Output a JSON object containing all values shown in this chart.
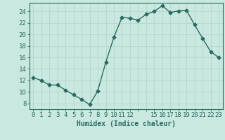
{
  "x": [
    0,
    1,
    2,
    3,
    4,
    5,
    6,
    7,
    8,
    9,
    10,
    11,
    12,
    13,
    14,
    15,
    16,
    17,
    18,
    19,
    20,
    21,
    22,
    23
  ],
  "y": [
    12.5,
    12.0,
    11.2,
    11.2,
    10.3,
    9.5,
    8.7,
    7.8,
    10.2,
    15.2,
    19.5,
    23.0,
    22.8,
    22.5,
    23.5,
    24.0,
    25.0,
    23.8,
    24.1,
    24.2,
    21.7,
    19.3,
    17.0,
    16.0
  ],
  "line_color": "#2a6b5e",
  "bg_color": "#c8e8e0",
  "grid_color": "#b8d8d0",
  "xlabel": "Humidex (Indice chaleur)",
  "ylabel_ticks": [
    8,
    10,
    12,
    14,
    16,
    18,
    20,
    22,
    24
  ],
  "ylim": [
    7.0,
    25.5
  ],
  "xlim": [
    -0.5,
    23.5
  ],
  "xtick_labels": [
    "0",
    "1",
    "2",
    "3",
    "4",
    "5",
    "6",
    "7",
    "8",
    "9",
    "10",
    "11",
    "12",
    "",
    "",
    "15",
    "16",
    "17",
    "18",
    "19",
    "20",
    "21",
    "22",
    "23"
  ],
  "xtick_positions": [
    0,
    1,
    2,
    3,
    4,
    5,
    6,
    7,
    8,
    9,
    10,
    11,
    12,
    13,
    14,
    15,
    16,
    17,
    18,
    19,
    20,
    21,
    22,
    23
  ],
  "label_fontsize": 7,
  "tick_fontsize": 6.5
}
